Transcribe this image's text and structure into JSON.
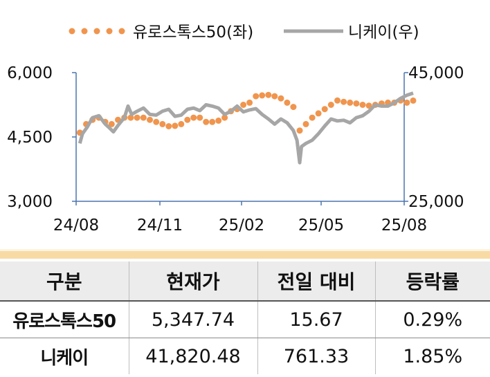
{
  "chart_data": {
    "type": "line",
    "x_ticks": [
      "24/08",
      "24/11",
      "25/02",
      "25/05",
      "25/08"
    ],
    "y_left": {
      "ticks": [
        "6,000",
        "4,500",
        "3,000"
      ],
      "range": [
        3000,
        6000
      ]
    },
    "y_right": {
      "ticks": [
        "45,000",
        "25,000"
      ],
      "range": [
        25000,
        45000
      ]
    },
    "series": [
      {
        "name": "유로스톡스50(좌)",
        "axis": "left",
        "style": "dotted",
        "color": "#f0954e",
        "x": [
          "2024-08-05",
          "2024-08-12",
          "2024-08-19",
          "2024-08-26",
          "2024-09-02",
          "2024-09-09",
          "2024-09-16",
          "2024-09-23",
          "2024-09-30",
          "2024-10-07",
          "2024-10-14",
          "2024-10-21",
          "2024-10-28",
          "2024-11-04",
          "2024-11-11",
          "2024-11-18",
          "2024-11-25",
          "2024-12-02",
          "2024-12-09",
          "2024-12-16",
          "2024-12-23",
          "2024-12-30",
          "2025-01-06",
          "2025-01-13",
          "2025-01-20",
          "2025-01-27",
          "2025-02-03",
          "2025-02-10",
          "2025-02-17",
          "2025-02-24",
          "2025-03-03",
          "2025-03-10",
          "2025-03-17",
          "2025-03-24",
          "2025-03-31",
          "2025-04-07",
          "2025-04-14",
          "2025-04-21",
          "2025-04-28",
          "2025-05-05",
          "2025-05-12",
          "2025-05-19",
          "2025-05-26",
          "2025-06-02",
          "2025-06-09",
          "2025-06-16",
          "2025-06-23",
          "2025-06-30",
          "2025-07-07",
          "2025-07-14",
          "2025-07-21",
          "2025-07-28",
          "2025-08-04",
          "2025-08-11"
        ],
        "values": [
          4600,
          4800,
          4900,
          4950,
          4850,
          4800,
          4900,
          4950,
          4950,
          4950,
          4950,
          4900,
          4850,
          4800,
          4750,
          4760,
          4800,
          4900,
          4950,
          4950,
          4850,
          4850,
          4880,
          4950,
          5100,
          5150,
          5250,
          5300,
          5450,
          5470,
          5480,
          5450,
          5400,
          5300,
          5200,
          4650,
          4800,
          4950,
          5050,
          5150,
          5250,
          5350,
          5320,
          5300,
          5280,
          5250,
          5230,
          5250,
          5280,
          5300,
          5300,
          5350,
          5300,
          5347.74
        ]
      },
      {
        "name": "니케이(우)",
        "axis": "right",
        "style": "solid",
        "color": "#a6a6a6",
        "x": [
          "2024-08-05",
          "2024-08-08",
          "2024-08-13",
          "2024-08-19",
          "2024-08-26",
          "2024-09-02",
          "2024-09-06",
          "2024-09-11",
          "2024-09-16",
          "2024-09-23",
          "2024-09-27",
          "2024-10-01",
          "2024-10-07",
          "2024-10-14",
          "2024-10-21",
          "2024-10-28",
          "2024-11-04",
          "2024-11-11",
          "2024-11-18",
          "2024-11-25",
          "2024-12-02",
          "2024-12-09",
          "2024-12-16",
          "2024-12-23",
          "2024-12-30",
          "2025-01-06",
          "2025-01-13",
          "2025-01-20",
          "2025-01-27",
          "2025-02-03",
          "2025-02-10",
          "2025-02-17",
          "2025-02-24",
          "2025-03-03",
          "2025-03-10",
          "2025-03-17",
          "2025-03-24",
          "2025-03-31",
          "2025-04-04",
          "2025-04-07",
          "2025-04-09",
          "2025-04-14",
          "2025-04-21",
          "2025-04-28",
          "2025-05-05",
          "2025-05-12",
          "2025-05-19",
          "2025-05-26",
          "2025-06-02",
          "2025-06-09",
          "2025-06-16",
          "2025-06-23",
          "2025-06-30",
          "2025-07-07",
          "2025-07-14",
          "2025-07-21",
          "2025-07-28",
          "2025-08-04",
          "2025-08-11"
        ],
        "values": [
          34000,
          35500,
          36500,
          38000,
          38300,
          37000,
          36500,
          35800,
          36800,
          38000,
          39800,
          38500,
          39000,
          39500,
          38500,
          38400,
          39000,
          39300,
          38200,
          38400,
          39300,
          39500,
          39100,
          40000,
          39800,
          39500,
          38500,
          39000,
          39800,
          38900,
          39200,
          39400,
          38500,
          37800,
          37000,
          37800,
          37200,
          36000,
          34500,
          31000,
          33500,
          34000,
          34500,
          35500,
          36700,
          37800,
          37500,
          37600,
          37200,
          38000,
          38300,
          39000,
          40000,
          39800,
          39800,
          40300,
          41000,
          41500,
          41820.48
        ]
      }
    ]
  },
  "table": {
    "headers": [
      "구분",
      "현재가",
      "전일 대비",
      "등락률"
    ],
    "rows": [
      [
        "유로스톡스50",
        "5,347.74",
        "15.67",
        "0.29%"
      ],
      [
        "니케이",
        "41,820.48",
        "761.33",
        "1.85%"
      ]
    ]
  }
}
